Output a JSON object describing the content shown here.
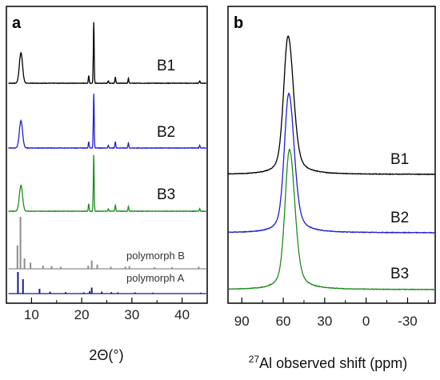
{
  "chart_data": [
    {
      "panel": "a",
      "type": "line",
      "xlabel": "2Θ(°)",
      "xlim": [
        5,
        45
      ],
      "xticks": [
        "10",
        "20",
        "30",
        "40"
      ],
      "yticks": "none",
      "colors": {
        "B1": "#000000",
        "B2": "#1f1fd6",
        "B3": "#1e8c1e",
        "polymorph B": "#8c8c8c",
        "polymorph A": "#1a1a80"
      },
      "series": [
        {
          "name": "B1",
          "peaks": [
            {
              "x": 7.9,
              "height": 1.0
            },
            {
              "x": 21.4,
              "height": 0.25
            },
            {
              "x": 22.4,
              "height": 2.0
            },
            {
              "x": 25.3,
              "height": 0.08
            },
            {
              "x": 26.7,
              "height": 0.2
            },
            {
              "x": 29.3,
              "height": 0.16
            },
            {
              "x": 43.5,
              "height": 0.08
            }
          ]
        },
        {
          "name": "B2",
          "peaks": [
            {
              "x": 7.9,
              "height": 0.85
            },
            {
              "x": 21.4,
              "height": 0.2
            },
            {
              "x": 22.4,
              "height": 1.7
            },
            {
              "x": 25.3,
              "height": 0.08
            },
            {
              "x": 26.7,
              "height": 0.2
            },
            {
              "x": 29.3,
              "height": 0.16
            },
            {
              "x": 43.5,
              "height": 0.08
            }
          ]
        },
        {
          "name": "B3",
          "peaks": [
            {
              "x": 7.9,
              "height": 0.85
            },
            {
              "x": 21.4,
              "height": 0.25
            },
            {
              "x": 22.4,
              "height": 1.85
            },
            {
              "x": 25.3,
              "height": 0.08
            },
            {
              "x": 26.7,
              "height": 0.2
            },
            {
              "x": 29.3,
              "height": 0.16
            },
            {
              "x": 43.5,
              "height": 0.08
            }
          ]
        },
        {
          "name": "polymorph B",
          "sticks": [
            {
              "x": 7.2,
              "height": 0.45
            },
            {
              "x": 7.8,
              "height": 1.0
            },
            {
              "x": 8.6,
              "height": 0.2
            },
            {
              "x": 9.8,
              "height": 0.12
            },
            {
              "x": 12.3,
              "height": 0.06
            },
            {
              "x": 14.0,
              "height": 0.05
            },
            {
              "x": 15.8,
              "height": 0.04
            },
            {
              "x": 21.3,
              "height": 0.06
            },
            {
              "x": 22.0,
              "height": 0.16
            },
            {
              "x": 23.1,
              "height": 0.08
            },
            {
              "x": 25.8,
              "height": 0.04
            },
            {
              "x": 28.7,
              "height": 0.04
            },
            {
              "x": 29.5,
              "height": 0.05
            },
            {
              "x": 34.5,
              "height": 0.03
            },
            {
              "x": 38.0,
              "height": 0.03
            },
            {
              "x": 43.3,
              "height": 0.04
            }
          ]
        },
        {
          "name": "polymorph A",
          "sticks": [
            {
              "x": 7.3,
              "height": 0.9
            },
            {
              "x": 8.3,
              "height": 0.6
            },
            {
              "x": 11.6,
              "height": 0.2
            },
            {
              "x": 13.7,
              "height": 0.08
            },
            {
              "x": 16.8,
              "height": 0.06
            },
            {
              "x": 20.4,
              "height": 0.05
            },
            {
              "x": 21.6,
              "height": 0.1
            },
            {
              "x": 22.0,
              "height": 0.25
            },
            {
              "x": 24.0,
              "height": 0.08
            },
            {
              "x": 25.9,
              "height": 0.06
            },
            {
              "x": 27.2,
              "height": 0.05
            },
            {
              "x": 30.6,
              "height": 0.05
            },
            {
              "x": 34.2,
              "height": 0.04
            },
            {
              "x": 43.7,
              "height": 0.04
            }
          ]
        }
      ]
    },
    {
      "panel": "b",
      "type": "line",
      "xlabel": "27Al observed shift (ppm)",
      "xlim": [
        100,
        -50
      ],
      "x_reversed": true,
      "xticks": [
        "90",
        "60",
        "30",
        "0",
        "-30"
      ],
      "yticks": "none",
      "colors": {
        "B1": "#000000",
        "B2": "#1f1fd6",
        "B3": "#1e8c1e"
      },
      "series": [
        {
          "name": "B1",
          "peak_center": 56.5,
          "height": 1.0
        },
        {
          "name": "B2",
          "peak_center": 56.0,
          "height": 1.0
        },
        {
          "name": "B3",
          "peak_center": 55.5,
          "height": 1.0
        }
      ]
    }
  ],
  "panels": {
    "a": {
      "label": "a",
      "x_title": "2Θ(°)",
      "ticks": [
        "10",
        "20",
        "30",
        "40"
      ],
      "sample_labels": [
        "B1",
        "B2",
        "B3"
      ],
      "ref_labels": [
        "polymorph B",
        "polymorph A"
      ]
    },
    "b": {
      "label": "b",
      "x_title_sup": "27",
      "x_title_main": "Al observed shift (ppm)",
      "ticks": [
        "90",
        "60",
        "30",
        "0",
        "-30"
      ],
      "sample_labels": [
        "B1",
        "B2",
        "B3"
      ]
    }
  }
}
